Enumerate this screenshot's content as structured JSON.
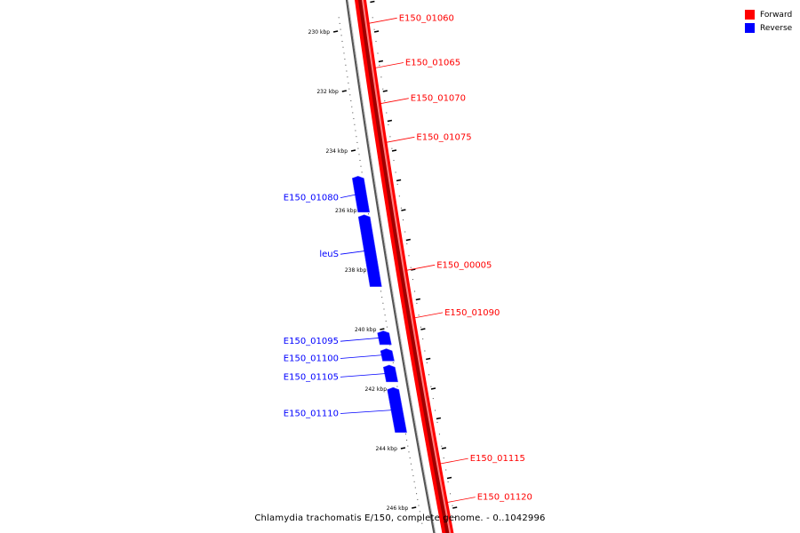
{
  "caption": "Chlamydia trachomatis E/150, complete genome. - 0..1042996",
  "legend": {
    "items": [
      {
        "label": "Forward",
        "color": "#ff0000"
      },
      {
        "label": "Reverse",
        "color": "#0000ff"
      }
    ]
  },
  "colors": {
    "forward": "#ff0000",
    "reverse": "#0000ff",
    "backbone": "#808080"
  },
  "ticks": [
    {
      "kbp": 230,
      "label": "230 kbp"
    },
    {
      "kbp": 232,
      "label": "232 kbp"
    },
    {
      "kbp": 234,
      "label": "234 kbp"
    },
    {
      "kbp": 236,
      "label": "236 kbp"
    },
    {
      "kbp": 238,
      "label": "238 kbp"
    },
    {
      "kbp": 240,
      "label": "240 kbp"
    },
    {
      "kbp": 242,
      "label": "242 kbp"
    },
    {
      "kbp": 244,
      "label": "244 kbp"
    },
    {
      "kbp": 246,
      "label": "246 kbp"
    }
  ],
  "features": [
    {
      "label": "E150_01060",
      "strand": "forward",
      "at_kbp": 229.5
    },
    {
      "label": "E150_01065",
      "strand": "forward",
      "at_kbp": 231.0
    },
    {
      "label": "E150_01070",
      "strand": "forward",
      "at_kbp": 232.2
    },
    {
      "label": "E150_01075",
      "strand": "forward",
      "at_kbp": 233.5
    },
    {
      "label": "E150_01080",
      "strand": "reverse",
      "start_kbp": 234.8,
      "end_kbp": 236.1
    },
    {
      "label": "leuS",
      "strand": "reverse",
      "start_kbp": 236.1,
      "end_kbp": 238.6
    },
    {
      "label": "E150_00005",
      "strand": "forward",
      "at_kbp": 237.8
    },
    {
      "label": "E150_01090",
      "strand": "forward",
      "at_kbp": 239.4
    },
    {
      "label": "E150_01095",
      "strand": "reverse",
      "start_kbp": 240.0,
      "end_kbp": 240.55
    },
    {
      "label": "E150_01100",
      "strand": "reverse",
      "start_kbp": 240.6,
      "end_kbp": 241.1
    },
    {
      "label": "E150_01105",
      "strand": "reverse",
      "start_kbp": 241.15,
      "end_kbp": 241.8
    },
    {
      "label": "E150_01110",
      "strand": "reverse",
      "start_kbp": 241.9,
      "end_kbp": 243.5
    },
    {
      "label": "E150_01115",
      "strand": "forward",
      "at_kbp": 244.3
    },
    {
      "label": "E150_01120",
      "strand": "forward",
      "at_kbp": 245.6
    }
  ]
}
